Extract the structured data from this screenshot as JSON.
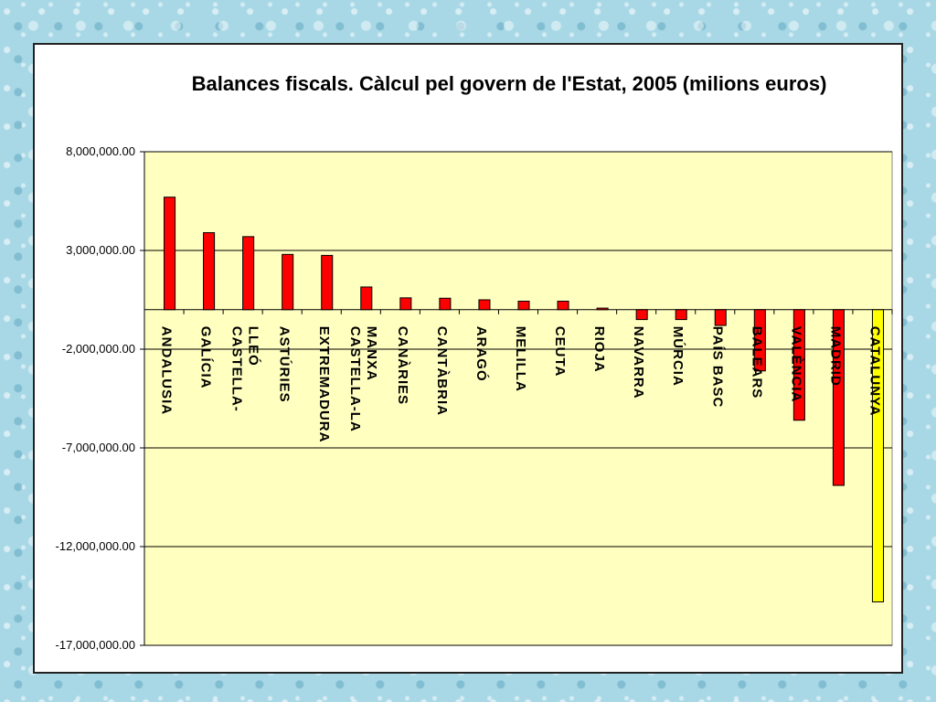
{
  "chart_data": {
    "type": "bar",
    "title": "Balances fiscals. Càlcul pel govern de l'Estat, 2005 (milions euros)",
    "xlabel": "",
    "ylabel": "",
    "ylim": [
      -17000000,
      8000000
    ],
    "yticks": [
      8000000,
      3000000,
      -2000000,
      -7000000,
      -12000000,
      -17000000
    ],
    "ytick_labels": [
      "8,000,000.00",
      "3,000,000.00",
      "-2,000,000.00",
      "-7,000,000.00",
      "-12,000,000.00",
      "-17,000,000.00"
    ],
    "grid": true,
    "plot_background": "#ffffc0",
    "categories": [
      [
        "ANDALUSIA"
      ],
      [
        "GALÍCIA"
      ],
      [
        "CASTELLA-",
        "LLEÓ"
      ],
      [
        "ASTÚRIES"
      ],
      [
        "EXTREMADURA"
      ],
      [
        "CASTELLA-LA",
        "MANXA"
      ],
      [
        "CANÀRIES"
      ],
      [
        "CANTÀBRIA"
      ],
      [
        "ARAGÓ"
      ],
      [
        "MELILLA"
      ],
      [
        "CEUTA"
      ],
      [
        "RIOJA"
      ],
      [
        "NAVARRA"
      ],
      [
        "MÚRCIA"
      ],
      [
        "PAÍS BASC"
      ],
      [
        "BALEARS"
      ],
      [
        "VALÈNCIA"
      ],
      [
        "MADRID"
      ],
      [
        "CATALUNYA"
      ]
    ],
    "values": [
      5700000,
      3900000,
      3700000,
      2800000,
      2750000,
      1150000,
      600000,
      580000,
      500000,
      430000,
      430000,
      80000,
      -500000,
      -500000,
      -800000,
      -3100000,
      -5600000,
      -8900000,
      -14800000
    ],
    "colors": [
      "#ff0000",
      "#ff0000",
      "#ff0000",
      "#ff0000",
      "#ff0000",
      "#ff0000",
      "#ff0000",
      "#ff0000",
      "#ff0000",
      "#ff0000",
      "#ff0000",
      "#ff0000",
      "#ff0000",
      "#ff0000",
      "#ff0000",
      "#ff0000",
      "#ff0000",
      "#ff0000",
      "#ffff00"
    ]
  }
}
